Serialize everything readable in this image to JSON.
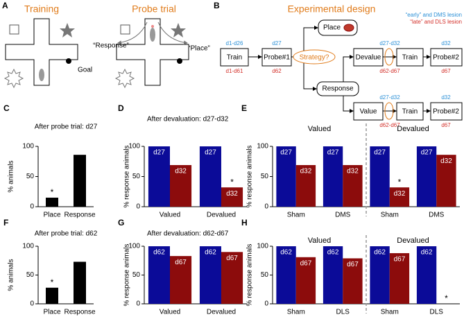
{
  "panel_a": {
    "label": "A",
    "training": "Training",
    "goal": "Goal",
    "probe_trial": "Probe trial",
    "response": "“Response”",
    "place": "“Place”"
  },
  "panel_b": {
    "label": "B",
    "title": "Experimental design",
    "legend_early": "“early” and DMS lesion",
    "legend_late": "“late” and DLS lesion",
    "train": {
      "text": "Train",
      "early": "d1-d26",
      "late": "d1-d61"
    },
    "probe1": {
      "text": "Probe#1",
      "early": "d27",
      "late": "d62"
    },
    "strategy": "Strategy?",
    "place": "Place",
    "response": "Response",
    "devalue_row": {
      "devalue": "Devalue",
      "early": "d27-d32",
      "late": "d62-d67",
      "train": "Train",
      "probe": "Probe#2",
      "probe_early": "d32",
      "probe_late": "d67"
    },
    "value_row": {
      "value": "Value",
      "early": "d27-d32",
      "late": "d62-d67",
      "train": "Train",
      "probe": "Probe#2",
      "probe_early": "d32",
      "probe_late": "d67"
    }
  },
  "chart_data": [
    {
      "type": "bar",
      "panel": "C",
      "title": "After probe trial: d27",
      "ylabel": "% animals",
      "categories": [
        "Place",
        "Response"
      ],
      "values": [
        15,
        86
      ],
      "stars": [
        "*",
        null
      ],
      "color": "#000000",
      "ylim": [
        0,
        100
      ],
      "yticks": [
        0,
        50,
        100
      ]
    },
    {
      "type": "grouped_bar",
      "panel": "D",
      "title": "After devaluation: d27-d32",
      "ylabel": "% response animals",
      "categories": [
        "Valued",
        "Devalued"
      ],
      "series": [
        {
          "name": "d27",
          "color": "#0b0b98",
          "values": [
            100,
            100
          ],
          "stars": [
            null,
            null
          ]
        },
        {
          "name": "d32",
          "color": "#8c0c0c",
          "values": [
            69,
            32
          ],
          "stars": [
            null,
            "*"
          ]
        }
      ],
      "ylim": [
        0,
        100
      ],
      "yticks": [
        0,
        50,
        100
      ]
    },
    {
      "type": "grouped_bar",
      "panel": "E",
      "ylabel": "% response animals",
      "groups": [
        "Valued",
        "Devalued"
      ],
      "categories": [
        "Sham",
        "DMS",
        "Sham",
        "DMS"
      ],
      "series": [
        {
          "name": "d27",
          "color": "#0b0b98",
          "values": [
            100,
            100,
            100,
            100
          ],
          "stars": [
            null,
            null,
            null,
            null
          ]
        },
        {
          "name": "d32",
          "color": "#8c0c0c",
          "values": [
            69,
            69,
            32,
            86
          ],
          "stars": [
            null,
            null,
            "*",
            null
          ]
        }
      ],
      "ylim": [
        0,
        100
      ],
      "yticks": [
        0,
        50,
        100
      ]
    },
    {
      "type": "bar",
      "panel": "F",
      "title": "After probe trial: d62",
      "ylabel": "% animals",
      "categories": [
        "Place",
        "Response"
      ],
      "values": [
        28,
        73
      ],
      "stars": [
        "*",
        null
      ],
      "color": "#000000",
      "ylim": [
        0,
        100
      ],
      "yticks": [
        0,
        50,
        100
      ]
    },
    {
      "type": "grouped_bar",
      "panel": "G",
      "title": "After devaluation: d62-d67",
      "ylabel": "% response animals",
      "categories": [
        "Valued",
        "Devalued"
      ],
      "series": [
        {
          "name": "d62",
          "color": "#0b0b98",
          "values": [
            100,
            100
          ],
          "stars": [
            null,
            null
          ]
        },
        {
          "name": "d67",
          "color": "#8c0c0c",
          "values": [
            83,
            90
          ],
          "stars": [
            null,
            null
          ]
        }
      ],
      "ylim": [
        0,
        100
      ],
      "yticks": [
        0,
        50,
        100
      ]
    },
    {
      "type": "grouped_bar",
      "panel": "H",
      "ylabel": "% response animals",
      "groups": [
        "Valued",
        "Devalued"
      ],
      "categories": [
        "Sham",
        "DLS",
        "Sham",
        "DLS"
      ],
      "series": [
        {
          "name": "d62",
          "color": "#0b0b98",
          "values": [
            100,
            100,
            100,
            100
          ],
          "stars": [
            null,
            null,
            null,
            null
          ]
        },
        {
          "name": "d67",
          "color": "#8c0c0c",
          "values": [
            81,
            79,
            88,
            0
          ],
          "stars": [
            null,
            null,
            null,
            "*"
          ]
        }
      ],
      "ylim": [
        0,
        100
      ],
      "yticks": [
        0,
        50,
        100
      ]
    }
  ]
}
